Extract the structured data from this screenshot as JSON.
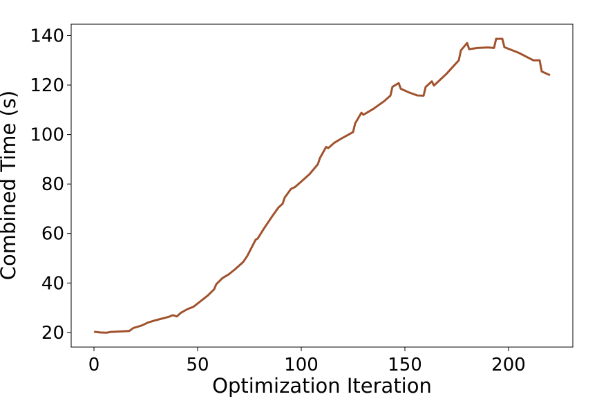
{
  "chart_data": {
    "type": "line",
    "xlabel": "Optimization Iteration",
    "ylabel": "Combined Time (s)",
    "xlim": [
      -11,
      231
    ],
    "ylim": [
      14.1,
      144.6
    ],
    "xticks": [
      0,
      50,
      100,
      150,
      200
    ],
    "yticks": [
      20,
      40,
      60,
      80,
      100,
      120,
      140
    ],
    "grid": false,
    "series": [
      {
        "color": "#a0522d",
        "x": [
          0,
          3,
          6,
          8,
          12,
          17,
          19,
          23,
          26,
          30,
          36,
          38,
          40,
          42,
          45,
          48,
          52,
          55,
          58,
          59,
          62,
          65,
          68,
          72,
          74,
          78,
          79,
          82,
          86,
          89,
          91,
          92,
          95,
          97,
          100,
          104,
          107,
          108,
          109,
          112,
          113,
          116,
          120,
          125,
          126,
          129,
          130,
          135,
          140,
          143,
          144,
          147,
          148,
          152,
          156,
          159,
          160,
          163,
          164,
          170,
          176,
          177,
          180,
          181,
          185,
          190,
          193,
          194,
          197,
          198,
          205,
          212,
          215,
          216,
          220
        ],
        "values": [
          20.3,
          20.0,
          19.9,
          20.2,
          20.4,
          20.6,
          21.8,
          22.8,
          24,
          25,
          26.3,
          27.0,
          26.5,
          28,
          29.4,
          30.4,
          33,
          35,
          37.5,
          39.5,
          42,
          43.5,
          45.5,
          48.5,
          51,
          57.5,
          58,
          62,
          67,
          70.5,
          72,
          74.5,
          78,
          78.8,
          81,
          84,
          87,
          88,
          90.5,
          95,
          94.5,
          96.7,
          98.7,
          101,
          104.5,
          108.8,
          108,
          110.5,
          113.5,
          115.7,
          119.3,
          120.8,
          118.5,
          117,
          115.8,
          115.7,
          119.2,
          121.5,
          119.8,
          124.5,
          130,
          134,
          137,
          134.5,
          135,
          135.2,
          135,
          138.7,
          138.7,
          135.3,
          133,
          130,
          130,
          125.5,
          124
        ]
      }
    ]
  }
}
